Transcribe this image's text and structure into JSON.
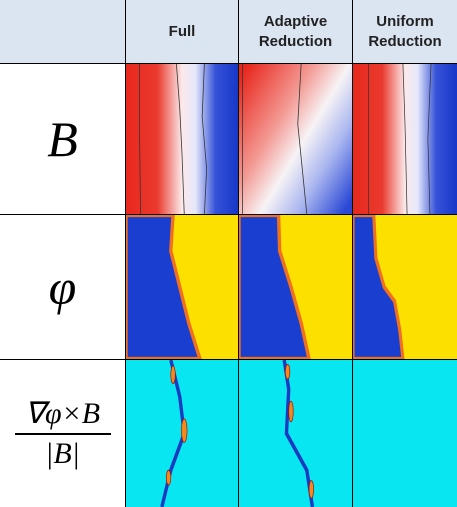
{
  "header": {
    "columns": [
      "Full",
      "Adaptive Reduction",
      "Uniform Reduction"
    ]
  },
  "rows": [
    {
      "label": "B"
    },
    {
      "label": "φ"
    },
    {
      "numerator": "∇φ×B",
      "denominator": "|B|"
    }
  ]
}
